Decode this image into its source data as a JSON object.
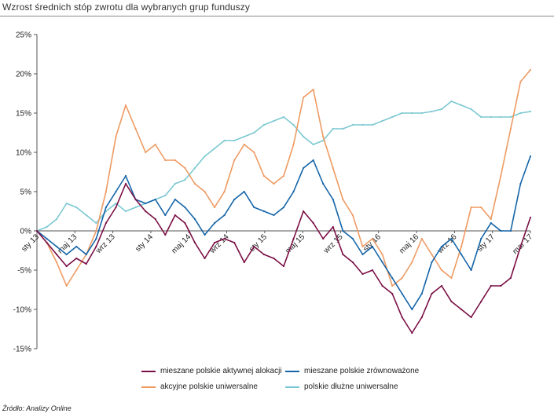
{
  "title": "Wzrost średnich stóp zwrotu dla wybranych grup funduszy",
  "source": "Źródło: Analizy Online",
  "chart_data": {
    "type": "line",
    "title": "Wzrost średnich stóp zwrotu dla wybranych grup funduszy",
    "xlabel": "",
    "ylabel": "",
    "ylim": [
      -15,
      25
    ],
    "y_ticks": [
      "25%",
      "20%",
      "15%",
      "10%",
      "5%",
      "0%",
      "-5%",
      "-10%",
      "-15%"
    ],
    "x_ticks": [
      "sty 13",
      "maj 13",
      "wrz 13",
      "sty 14",
      "maj 14",
      "wrz 14",
      "sty 15",
      "maj 15",
      "wrz 15",
      "sty 16",
      "maj 16",
      "wrz 16",
      "sty 17",
      "mar 17"
    ],
    "grid": false,
    "legend": "bottom",
    "x": [
      "2013-01",
      "2013-02",
      "2013-03",
      "2013-04",
      "2013-05",
      "2013-06",
      "2013-07",
      "2013-08",
      "2013-09",
      "2013-10",
      "2013-11",
      "2013-12",
      "2014-01",
      "2014-02",
      "2014-03",
      "2014-04",
      "2014-05",
      "2014-06",
      "2014-07",
      "2014-08",
      "2014-09",
      "2014-10",
      "2014-11",
      "2014-12",
      "2015-01",
      "2015-02",
      "2015-03",
      "2015-04",
      "2015-05",
      "2015-06",
      "2015-07",
      "2015-08",
      "2015-09",
      "2015-10",
      "2015-11",
      "2015-12",
      "2016-01",
      "2016-02",
      "2016-03",
      "2016-04",
      "2016-05",
      "2016-06",
      "2016-07",
      "2016-08",
      "2016-09",
      "2016-10",
      "2016-11",
      "2016-12",
      "2017-01",
      "2017-02",
      "2017-03"
    ],
    "series": [
      {
        "name": "mieszane polskie aktywnej alokacji",
        "color": "#7a0f45",
        "values": [
          0,
          -1.5,
          -3,
          -4.5,
          -3.5,
          -4.2,
          -2,
          1,
          3,
          6,
          4,
          2.5,
          1.5,
          -0.5,
          2,
          1,
          -1.5,
          -3.5,
          -1.5,
          -1,
          -1.5,
          -4,
          -2,
          -3,
          -3.5,
          -4.5,
          -1,
          2.5,
          1,
          -1,
          0.5,
          -3,
          -4,
          -5.5,
          -5,
          -7,
          -8,
          -11,
          -13,
          -11,
          -8,
          -7,
          -9,
          -10,
          -11,
          -9,
          -7,
          -7,
          -6,
          -2,
          1.7
        ]
      },
      {
        "name": "mieszane polskie zrównoważone",
        "color": "#1464a8",
        "values": [
          0,
          -1,
          -2,
          -3,
          -2,
          -3,
          -1,
          3,
          5,
          7,
          4,
          3.5,
          4,
          2,
          4,
          3,
          1.5,
          -0.5,
          1,
          2,
          4,
          5,
          3,
          2.5,
          2,
          3,
          5,
          8,
          9,
          6,
          4,
          0,
          -1,
          -3,
          -2,
          -4,
          -6,
          -8,
          -10,
          -8,
          -4,
          -2,
          -1,
          -3,
          -5,
          -1,
          1,
          0,
          0,
          6,
          9.5
        ]
      },
      {
        "name": "akcyjne polskie uniwersalne",
        "color": "#ee9a62",
        "values": [
          0,
          -1.5,
          -4,
          -7,
          -5,
          -3,
          0,
          5,
          12,
          16,
          13,
          10,
          11,
          9,
          9,
          8,
          6,
          5,
          3,
          5,
          9,
          11,
          10,
          7,
          6,
          7,
          11,
          17,
          18,
          12,
          8,
          4,
          2,
          -2,
          -1,
          -3,
          -7,
          -6,
          -4,
          -1,
          -3,
          -5,
          -6,
          -2,
          3,
          3,
          1.5,
          7,
          13,
          19,
          20.5
        ]
      },
      {
        "name": "polskie dłużne uniwersalne",
        "color": "#7cc8d2",
        "values": [
          0,
          0.5,
          1.5,
          3.5,
          3,
          2,
          1,
          2.5,
          3.5,
          2.5,
          3,
          3.5,
          4,
          4.5,
          6,
          6.5,
          8,
          9.5,
          10.5,
          11.5,
          11.5,
          12,
          12.5,
          13.5,
          14,
          14.5,
          13.5,
          12,
          11,
          11.5,
          13,
          13,
          13.5,
          13.5,
          13.5,
          14,
          14.5,
          15,
          15,
          15,
          15.2,
          15.5,
          16.5,
          16,
          15.5,
          14.5,
          14.5,
          14.5,
          14.5,
          15,
          15.2
        ]
      }
    ]
  }
}
